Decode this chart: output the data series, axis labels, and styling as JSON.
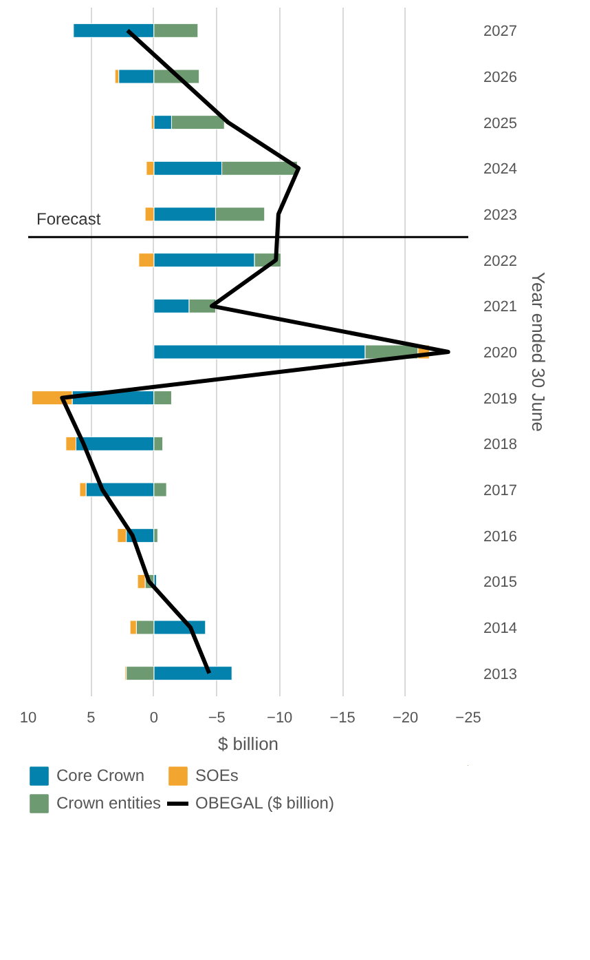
{
  "chart_data": {
    "type": "bar",
    "orientation": "horizontal",
    "stacked": true,
    "xlabel": "$ billion",
    "ylabel": "Year ended 30 June",
    "x": [
      2013,
      2014,
      2015,
      2016,
      2017,
      2018,
      2019,
      2020,
      2021,
      2022,
      2023,
      2024,
      2025,
      2026,
      2027
    ],
    "ylim": [
      2012.5,
      2027.5
    ],
    "yticks": [
      2013,
      2014,
      2015,
      2016,
      2017,
      2018,
      2019,
      2020,
      2021,
      2022,
      2023,
      2024,
      2025,
      2026,
      2027
    ],
    "xlim": [
      10,
      -25
    ],
    "xticks": [
      10,
      5,
      0,
      -5,
      -10,
      -15,
      -20,
      -25
    ],
    "series": [
      {
        "name": "Core Crown",
        "color": "#0282ad",
        "values": [
          -6.2,
          -4.1,
          -0.2,
          2.2,
          5.4,
          6.2,
          6.5,
          -16.8,
          -2.8,
          -8.0,
          -4.9,
          -5.4,
          -1.4,
          2.8,
          6.4
        ]
      },
      {
        "name": "Crown entities",
        "color": "#6d9a70",
        "values": [
          2.2,
          1.4,
          0.7,
          -0.3,
          -1.0,
          -0.7,
          -1.4,
          -4.2,
          -2.1,
          -2.1,
          -3.9,
          -6.0,
          -4.2,
          -3.6,
          -3.5
        ]
      },
      {
        "name": "SOEs",
        "color": "#f2a52f",
        "values": [
          0.1,
          0.5,
          0.6,
          0.7,
          0.5,
          0.8,
          3.2,
          -0.9,
          null,
          1.2,
          0.7,
          0.6,
          0.2,
          0.3,
          null
        ]
      },
      {
        "name": "OBEGAL ($ billion)",
        "type": "line",
        "color": "#000000",
        "values": [
          -4.4,
          -2.9,
          0.4,
          1.7,
          4.1,
          5.6,
          7.3,
          -23.4,
          -4.6,
          -9.7,
          -9.9,
          -11.5,
          -5.9,
          -1.9,
          2.1
        ]
      }
    ],
    "ref_lines": [
      {
        "axis": "y",
        "value": 2022.5,
        "label": "Forecast",
        "color": "#000000"
      }
    ],
    "grid": "x",
    "legend": "bottom"
  }
}
